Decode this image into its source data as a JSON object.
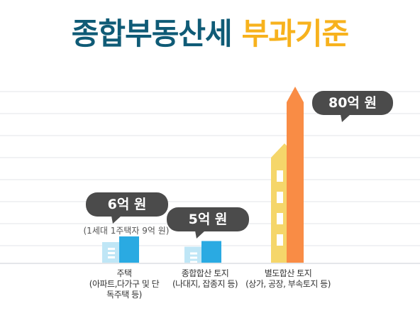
{
  "title": {
    "part1": "종합부동산세",
    "part2": "부과기준"
  },
  "chart_data": {
    "type": "bar",
    "title": "종합부동산세 부과기준",
    "categories": [
      {
        "lines": [
          "주택",
          "(아파트,다가구 및 단",
          "독주택 등)"
        ]
      },
      {
        "lines": [
          "종합합산 토지",
          "(나대지, 잡종지 등)"
        ]
      },
      {
        "lines": [
          "별도합산 토지",
          "(상가, 공장, 부속토지 등)"
        ]
      }
    ],
    "values": [
      6,
      5,
      80
    ],
    "value_labels": [
      "6억 원",
      "5억 원",
      "80억 원"
    ],
    "annotations": [
      "(1세대 1주택자 9억 원)"
    ],
    "unit": "억 원",
    "grid": true,
    "legend": "none"
  },
  "colors": {
    "title_primary": "#0f5b76",
    "title_accent": "#f7b21d",
    "bubble": "#4b4b4b",
    "building_light": "#bfe6f6",
    "building_dark": "#2aaae2",
    "tower_yellow": "#f5d66a",
    "tower_orange": "#f98c45",
    "gridline": "#e3e6ea"
  }
}
